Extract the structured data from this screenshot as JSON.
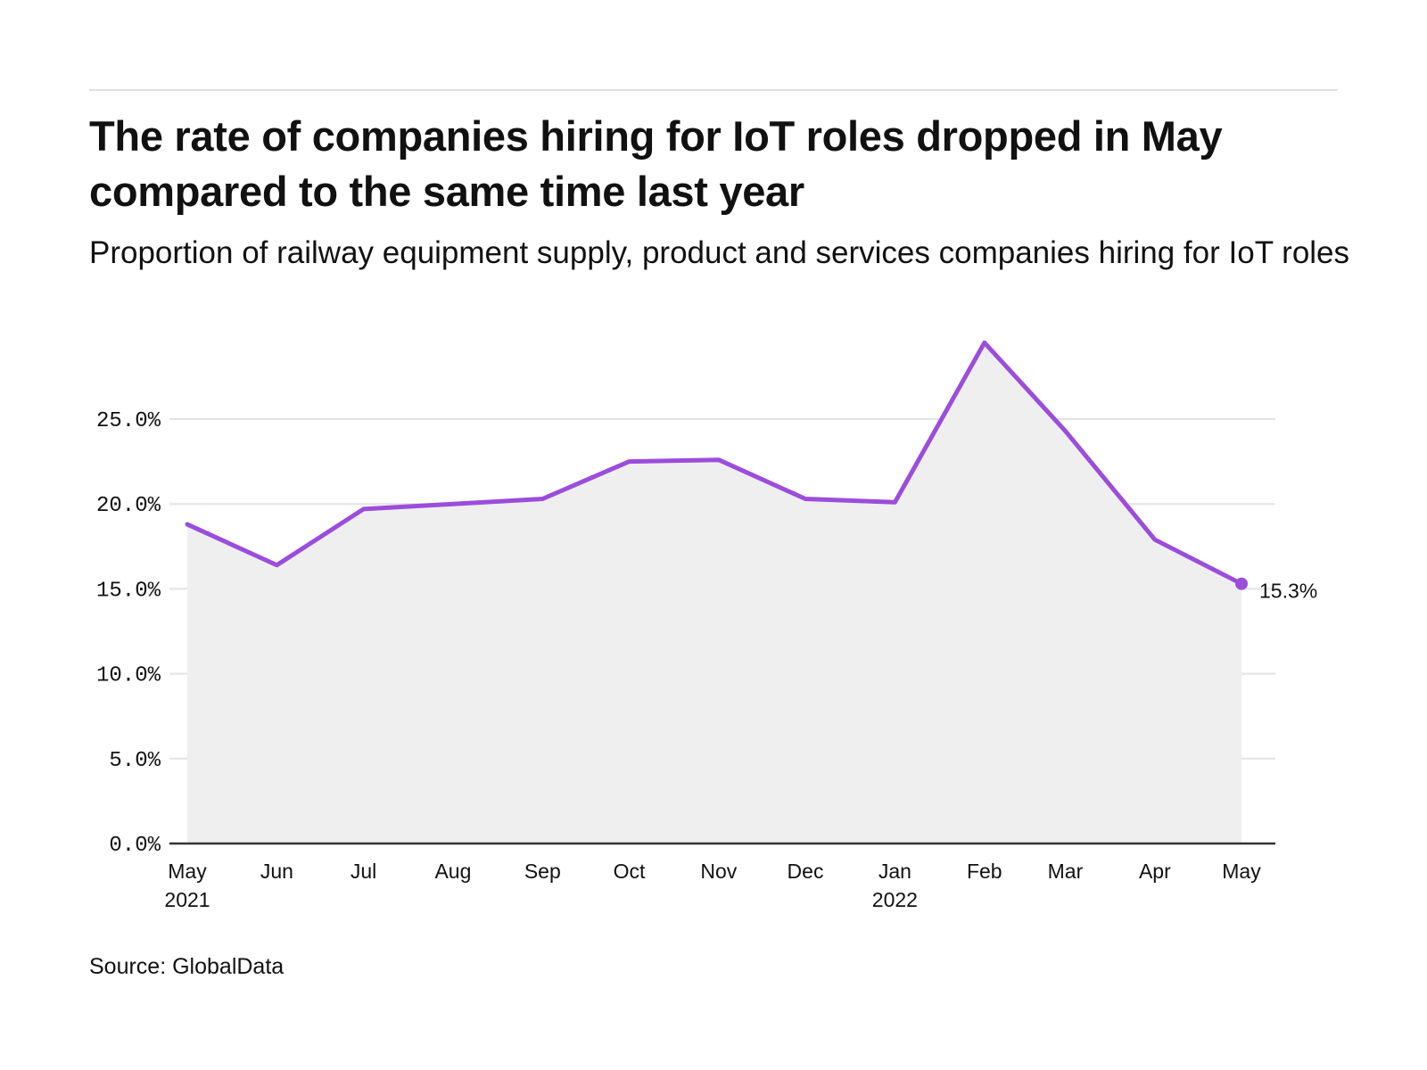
{
  "header": {
    "title": "The rate of companies hiring for IoT roles dropped in May compared to the same time last year",
    "subtitle": "Proportion of railway equipment supply, product and services companies hiring for IoT roles"
  },
  "footer": {
    "source": "Source: GlobalData"
  },
  "colors": {
    "line": "#9b4ddb",
    "area": "#efefef",
    "grid": "#e3e3e3",
    "axis": "#333333",
    "rule": "#e0e0e0"
  },
  "chart_data": {
    "type": "area",
    "title": "The rate of companies hiring for IoT roles dropped in May compared to the same time last year",
    "subtitle": "Proportion of railway equipment supply, product and services companies hiring for IoT roles",
    "xlabel": "",
    "ylabel": "",
    "categories": [
      "May 2021",
      "Jun",
      "Jul",
      "Aug",
      "Sep",
      "Oct",
      "Nov",
      "Dec",
      "Jan 2022",
      "Feb",
      "Mar",
      "Apr",
      "May"
    ],
    "x_tick_labels": [
      {
        "line1": "May",
        "line2": "2021"
      },
      {
        "line1": "Jun",
        "line2": ""
      },
      {
        "line1": "Jul",
        "line2": ""
      },
      {
        "line1": "Aug",
        "line2": ""
      },
      {
        "line1": "Sep",
        "line2": ""
      },
      {
        "line1": "Oct",
        "line2": ""
      },
      {
        "line1": "Nov",
        "line2": ""
      },
      {
        "line1": "Dec",
        "line2": ""
      },
      {
        "line1": "Jan",
        "line2": "2022"
      },
      {
        "line1": "Feb",
        "line2": ""
      },
      {
        "line1": "Mar",
        "line2": ""
      },
      {
        "line1": "Apr",
        "line2": ""
      },
      {
        "line1": "May",
        "line2": ""
      }
    ],
    "month_day_offsets": [
      0,
      31,
      61,
      92,
      123,
      153,
      184,
      214,
      245,
      276,
      304,
      335,
      365
    ],
    "series": [
      {
        "name": "Proportion of companies hiring for IoT roles",
        "values": [
          18.8,
          16.4,
          19.7,
          20.0,
          20.3,
          22.5,
          22.6,
          20.3,
          20.1,
          29.5,
          24.3,
          17.9,
          15.3
        ]
      }
    ],
    "ylim": [
      0,
      30
    ],
    "y_ticks": [
      0,
      5,
      10,
      15,
      20,
      25
    ],
    "y_tick_labels": [
      "0.0%",
      "5.0%",
      "10.0%",
      "15.0%",
      "20.0%",
      "25.0%"
    ],
    "grid": true,
    "legend": "none",
    "end_label": "15.3%",
    "end_marker": true
  }
}
